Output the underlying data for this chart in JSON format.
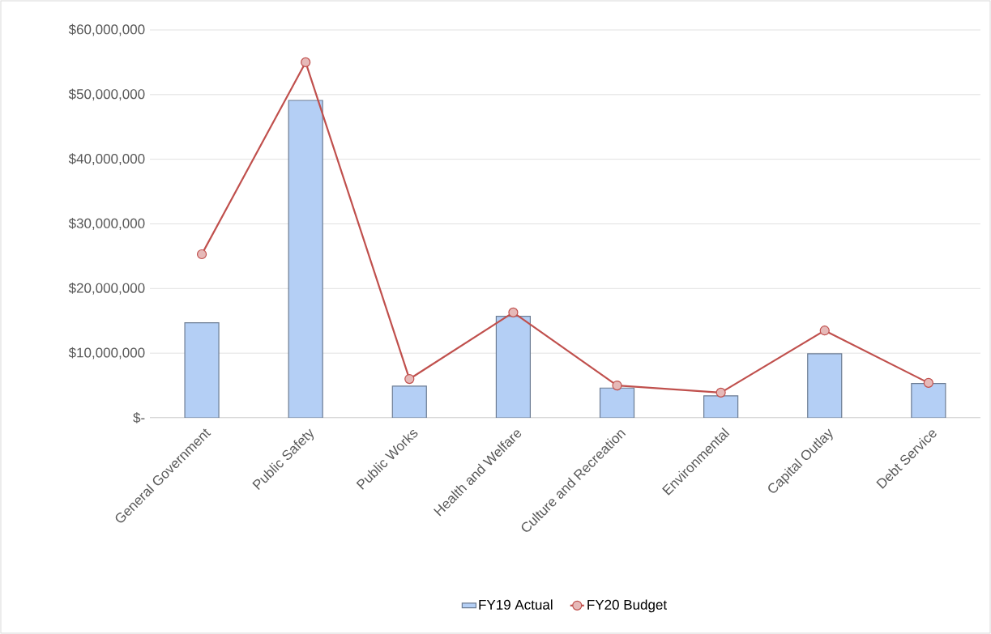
{
  "chart_data": {
    "type": "bar",
    "categories": [
      "General Government",
      "Public Safety",
      "Public Works",
      "Health and Welfare",
      "Culture and Recreation",
      "Environmental",
      "Capital Outlay",
      "Debt Service"
    ],
    "series": [
      {
        "name": "FY19 Actual",
        "color": "#b4cff5",
        "values": [
          14700000,
          49100000,
          4900000,
          15700000,
          4600000,
          3400000,
          9900000,
          5300000
        ]
      },
      {
        "name": "FY20 Budget",
        "type": "line",
        "color": "#c0504d",
        "marker": "circle",
        "values": [
          25300000,
          55000000,
          6000000,
          16300000,
          5000000,
          3900000,
          13500000,
          5400000
        ]
      }
    ],
    "ylim": [
      0,
      60000000
    ],
    "yticks": [
      {
        "value": 0,
        "label": "$-"
      },
      {
        "value": 10000000,
        "label": "$10,000,000"
      },
      {
        "value": 20000000,
        "label": "$20,000,000"
      },
      {
        "value": 30000000,
        "label": "$30,000,000"
      },
      {
        "value": 40000000,
        "label": "$40,000,000"
      },
      {
        "value": 50000000,
        "label": "$50,000,000"
      },
      {
        "value": 60000000,
        "label": "$60,000,000"
      }
    ],
    "grid": "y",
    "legend": "bottom"
  }
}
